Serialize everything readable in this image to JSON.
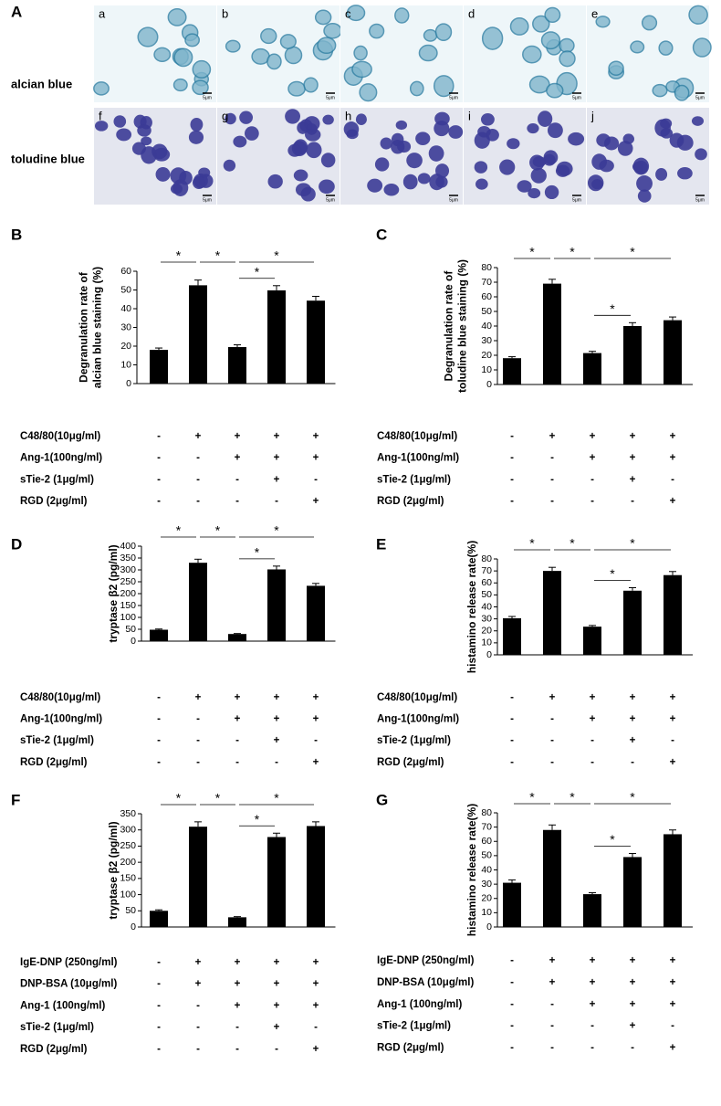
{
  "panel_a": {
    "label": "A",
    "row_labels": [
      "alcian blue",
      "toludine blue"
    ],
    "image_labels": [
      "a",
      "b",
      "c",
      "d",
      "e",
      "f",
      "g",
      "h",
      "i",
      "j"
    ],
    "scale_label": "5μm"
  },
  "chart_data": [
    {
      "panel": "B",
      "type": "bar",
      "ylabel": [
        "Degranulation rate of",
        "alcian blue staining (%)"
      ],
      "values": [
        18,
        52.5,
        19.5,
        49.8,
        44.3
      ],
      "errors": [
        1,
        2.8,
        1.2,
        2.5,
        2.3
      ],
      "color": "#000000",
      "ylim": [
        0,
        60
      ],
      "yticks": [
        0,
        10,
        20,
        30,
        40,
        50,
        60
      ],
      "significance": [
        {
          "label": "*",
          "between": [
            0,
            1
          ]
        },
        {
          "label": "*",
          "between": [
            1,
            2
          ]
        },
        {
          "label": "*",
          "between": [
            2,
            4
          ]
        },
        {
          "label": "*",
          "between": [
            2,
            3
          ]
        }
      ],
      "conditions": [
        {
          "name": "C48/80(10μg/ml)",
          "signs": [
            "-",
            "+",
            "+",
            "+",
            "+"
          ]
        },
        {
          "name": "Ang-1(100ng/ml)",
          "signs": [
            "-",
            "-",
            "+",
            "+",
            "+"
          ]
        },
        {
          "name": "sTie-2 (1μg/ml)",
          "signs": [
            "-",
            "-",
            "-",
            "+",
            "-"
          ]
        },
        {
          "name": "RGD  (2μg/ml)",
          "signs": [
            "-",
            "-",
            "-",
            "-",
            "+"
          ]
        }
      ]
    },
    {
      "panel": "C",
      "type": "bar",
      "ylabel": [
        "Degranulation rate of",
        "toludine blue staining (%)"
      ],
      "values": [
        18,
        69,
        21.5,
        40,
        44
      ],
      "errors": [
        1,
        3,
        1.2,
        2.3,
        2.2
      ],
      "color": "#000000",
      "ylim": [
        0,
        80
      ],
      "yticks": [
        0,
        10,
        20,
        30,
        40,
        50,
        60,
        70,
        80
      ],
      "significance": [
        {
          "label": "*",
          "between": [
            0,
            1
          ]
        },
        {
          "label": "*",
          "between": [
            1,
            2
          ]
        },
        {
          "label": "*",
          "between": [
            2,
            4
          ]
        },
        {
          "label": "*",
          "between": [
            2,
            3
          ]
        }
      ],
      "conditions": [
        {
          "name": "C48/80(10μg/ml)",
          "signs": [
            "-",
            "+",
            "+",
            "+",
            "+"
          ]
        },
        {
          "name": "Ang-1(100ng/ml)",
          "signs": [
            "-",
            "-",
            "+",
            "+",
            "+"
          ]
        },
        {
          "name": "sTie-2 (1μg/ml)",
          "signs": [
            "-",
            "-",
            "-",
            "+",
            "-"
          ]
        },
        {
          "name": "RGD  (2μg/ml)",
          "signs": [
            "-",
            "-",
            "-",
            "-",
            "+"
          ]
        }
      ]
    },
    {
      "panel": "D",
      "type": "bar",
      "ylabel": [
        "tryptase β2 (pg/ml)"
      ],
      "values": [
        48,
        330,
        30,
        302,
        233
      ],
      "errors": [
        3,
        15,
        2,
        14,
        10
      ],
      "color": "#000000",
      "ylim": [
        0,
        400
      ],
      "yticks": [
        0,
        50,
        100,
        150,
        200,
        250,
        300,
        350,
        400
      ],
      "significance": [
        {
          "label": "*",
          "between": [
            0,
            1
          ]
        },
        {
          "label": "*",
          "between": [
            1,
            2
          ]
        },
        {
          "label": "*",
          "between": [
            2,
            4
          ]
        },
        {
          "label": "*",
          "between": [
            2,
            3
          ]
        }
      ],
      "conditions": [
        {
          "name": "C48/80(10μg/ml)",
          "signs": [
            "-",
            "+",
            "+",
            "+",
            "+"
          ]
        },
        {
          "name": "Ang-1(100ng/ml)",
          "signs": [
            "-",
            "-",
            "+",
            "+",
            "+"
          ]
        },
        {
          "name": "sTie-2 (1μg/ml)",
          "signs": [
            "-",
            "-",
            "-",
            "+",
            "-"
          ]
        },
        {
          "name": "RGD  (2μg/ml)",
          "signs": [
            "-",
            "-",
            "-",
            "-",
            "+"
          ]
        }
      ]
    },
    {
      "panel": "E",
      "type": "bar",
      "ylabel": [
        "histamino release rate(%)"
      ],
      "values": [
        30.5,
        70,
        23.5,
        53.5,
        66.5
      ],
      "errors": [
        1.5,
        3,
        1,
        2.5,
        3
      ],
      "color": "#000000",
      "ylim": [
        0,
        80
      ],
      "yticks": [
        0,
        10,
        20,
        30,
        40,
        50,
        60,
        70,
        80
      ],
      "significance": [
        {
          "label": "*",
          "between": [
            0,
            1
          ]
        },
        {
          "label": "*",
          "between": [
            1,
            2
          ]
        },
        {
          "label": "*",
          "between": [
            2,
            4
          ]
        },
        {
          "label": "*",
          "between": [
            2,
            3
          ]
        }
      ],
      "conditions": [
        {
          "name": "C48/80(10μg/ml)",
          "signs": [
            "-",
            "+",
            "+",
            "+",
            "+"
          ]
        },
        {
          "name": "Ang-1(100ng/ml)",
          "signs": [
            "-",
            "-",
            "+",
            "+",
            "+"
          ]
        },
        {
          "name": "sTie-2 (1μg/ml)",
          "signs": [
            "-",
            "-",
            "-",
            "+",
            "-"
          ]
        },
        {
          "name": "RGD  (2μg/ml)",
          "signs": [
            "-",
            "-",
            "-",
            "-",
            "+"
          ]
        }
      ]
    },
    {
      "panel": "F",
      "type": "bar",
      "ylabel": [
        "tryptase β2 (pg/ml)"
      ],
      "values": [
        50,
        310,
        30,
        278,
        312
      ],
      "errors": [
        3,
        15,
        2,
        12,
        13
      ],
      "color": "#000000",
      "ylim": [
        0,
        350
      ],
      "yticks": [
        0,
        50,
        100,
        150,
        200,
        250,
        300,
        350
      ],
      "significance": [
        {
          "label": "*",
          "between": [
            0,
            1
          ]
        },
        {
          "label": "*",
          "between": [
            1,
            2
          ]
        },
        {
          "label": "*",
          "between": [
            2,
            4
          ]
        },
        {
          "label": "*",
          "between": [
            2,
            3
          ]
        }
      ],
      "conditions": [
        {
          "name": "IgE-DNP (250ng/ml)",
          "signs": [
            "-",
            "+",
            "+",
            "+",
            "+"
          ]
        },
        {
          "name": "DNP-BSA (10μg/ml)",
          "signs": [
            "-",
            "+",
            "+",
            "+",
            "+"
          ]
        },
        {
          "name": "Ang-1 (100ng/ml)",
          "signs": [
            "-",
            "-",
            "+",
            "+",
            "+"
          ]
        },
        {
          "name": "sTie-2 (1μg/ml)",
          "signs": [
            "-",
            "-",
            "-",
            "+",
            "-"
          ]
        },
        {
          "name": "RGD  (2μg/ml)",
          "signs": [
            "-",
            "-",
            "-",
            "-",
            "+"
          ]
        }
      ]
    },
    {
      "panel": "G",
      "type": "bar",
      "ylabel": [
        "histamino release rate(%)"
      ],
      "values": [
        31,
        68,
        23,
        49,
        65
      ],
      "errors": [
        2,
        3.5,
        1,
        2.5,
        3
      ],
      "color": "#000000",
      "ylim": [
        0,
        80
      ],
      "yticks": [
        0,
        10,
        20,
        30,
        40,
        50,
        60,
        70,
        80
      ],
      "significance": [
        {
          "label": "*",
          "between": [
            0,
            1
          ]
        },
        {
          "label": "*",
          "between": [
            1,
            2
          ]
        },
        {
          "label": "*",
          "between": [
            2,
            4
          ]
        },
        {
          "label": "*",
          "between": [
            2,
            3
          ]
        }
      ],
      "conditions": [
        {
          "name": "IgE-DNP (250ng/ml)",
          "signs": [
            "-",
            "+",
            "+",
            "+",
            "+"
          ]
        },
        {
          "name": "DNP-BSA (10μg/ml)",
          "signs": [
            "-",
            "+",
            "+",
            "+",
            "+"
          ]
        },
        {
          "name": "Ang-1 (100ng/ml)",
          "signs": [
            "-",
            "-",
            "+",
            "+",
            "+"
          ]
        },
        {
          "name": "sTie-2 (1μg/ml)",
          "signs": [
            "-",
            "-",
            "-",
            "+",
            "-"
          ]
        },
        {
          "name": "RGD  (2μg/ml)",
          "signs": [
            "-",
            "-",
            "-",
            "-",
            "+"
          ]
        }
      ]
    }
  ]
}
